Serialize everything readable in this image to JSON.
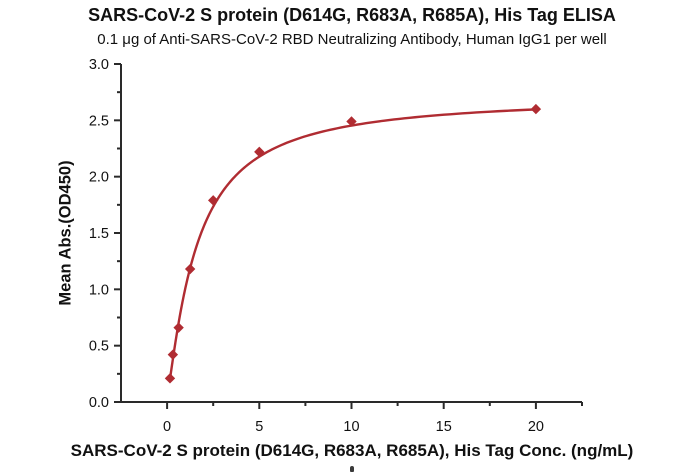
{
  "chart_data": {
    "type": "scatter",
    "title": "SARS-CoV-2 S protein (D614G, R683A, R685A), His Tag ELISA",
    "subtitle": "0.1 μg of Anti-SARS-CoV-2 RBD Neutralizing Antibody, Human IgG1 per well",
    "xlabel": "SARS-CoV-2 S protein (D614G, R683A, R685A), His Tag Conc. (ng/mL)",
    "ylabel": "Mean Abs.(OD450)",
    "x": [
      0.156,
      0.313,
      0.625,
      1.25,
      2.5,
      5,
      10,
      20
    ],
    "y": [
      0.21,
      0.42,
      0.66,
      1.18,
      1.79,
      2.22,
      2.49,
      2.6
    ],
    "marker": "diamond",
    "xlim": [
      -2.5,
      22.5
    ],
    "ylim": [
      0.0,
      3.0
    ],
    "grid": false,
    "legend": null,
    "x_major_ticks": [
      {
        "v": 0,
        "label": "0"
      },
      {
        "v": 5,
        "label": "5"
      },
      {
        "v": 10,
        "label": "10"
      },
      {
        "v": 15,
        "label": "15"
      },
      {
        "v": 20,
        "label": "20"
      }
    ],
    "x_minor_ticks": [
      2.5,
      7.5,
      12.5,
      17.5,
      22.5
    ],
    "y_major_ticks": [
      {
        "v": 0.0,
        "label": "0.0"
      },
      {
        "v": 0.5,
        "label": "0.5"
      },
      {
        "v": 1.0,
        "label": "1.0"
      },
      {
        "v": 1.5,
        "label": "1.5"
      },
      {
        "v": 2.0,
        "label": "2.0"
      },
      {
        "v": 2.5,
        "label": "2.5"
      },
      {
        "v": 3.0,
        "label": "3.0"
      }
    ],
    "y_minor_ticks": [
      0.25,
      0.75,
      1.25,
      1.75,
      2.25,
      2.75
    ],
    "fit_curve": {
      "model": "4PL",
      "bottom": 0.05,
      "top": 2.72,
      "ec50": 1.6,
      "hill": 1.2
    },
    "colors": {
      "accent_red": "#b02c32",
      "axis": "#2a2a2a",
      "text": "#111111"
    }
  }
}
